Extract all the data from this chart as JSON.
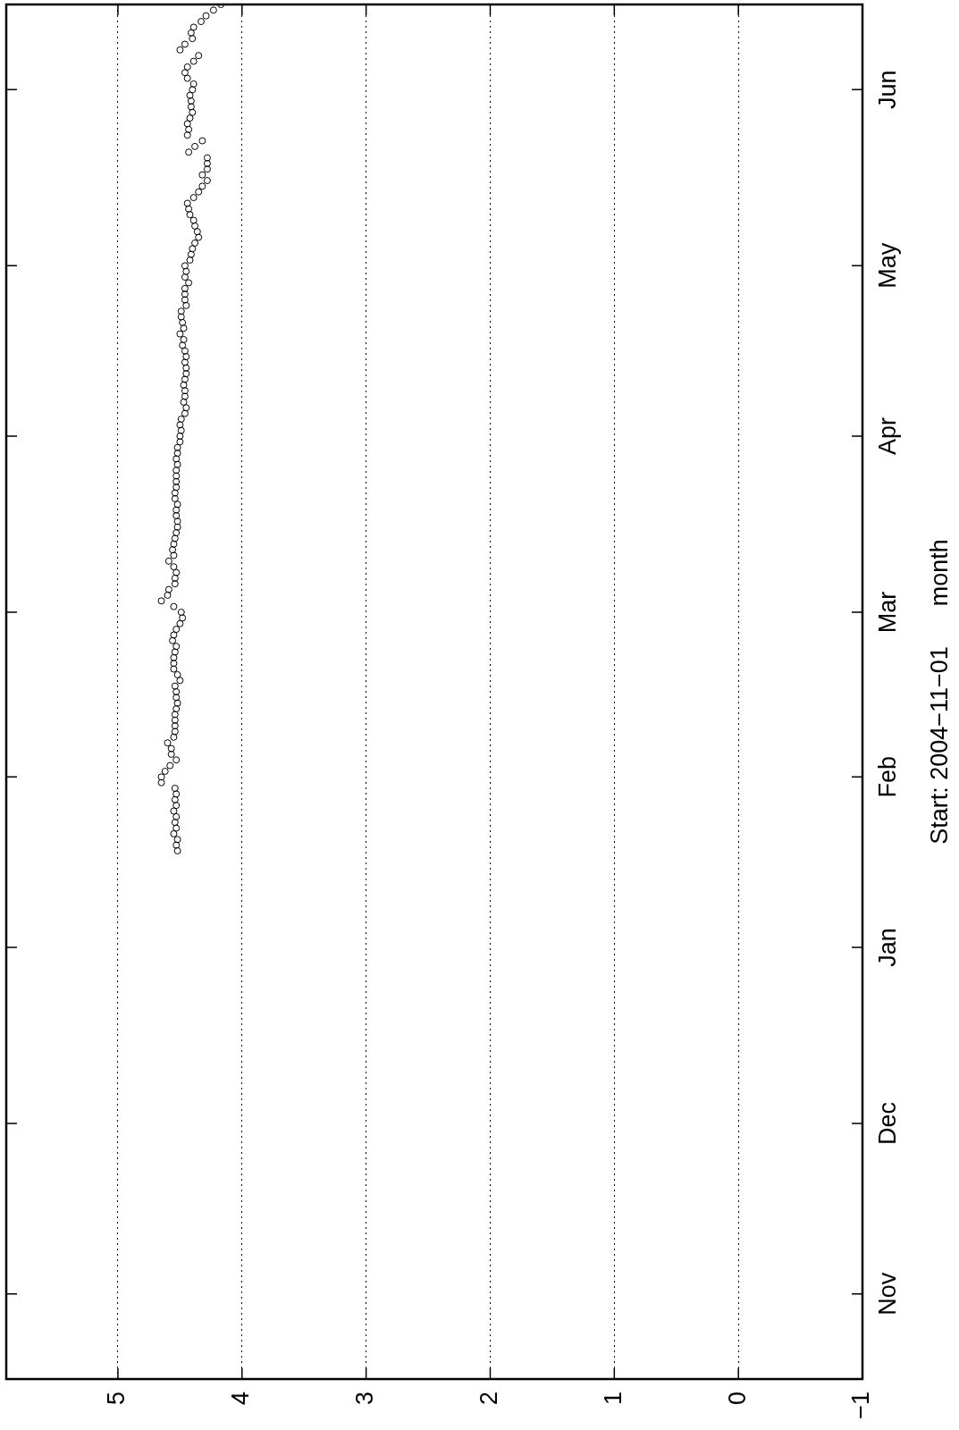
{
  "chart_data": {
    "type": "scatter",
    "orientation": "horizontal",
    "ylabel": "Start: 2004−11−01      month",
    "xlim": [
      5.9,
      -1
    ],
    "xticks": [
      5,
      4,
      3,
      2,
      1,
      0,
      {
        "value": -1,
        "label": "−1"
      }
    ],
    "categories": [
      null,
      null,
      null,
      null,
      null,
      null,
      null,
      null,
      null,
      null,
      null,
      null,
      null,
      null,
      null,
      "Jun",
      null,
      null,
      null,
      null,
      null,
      null,
      null,
      null,
      null,
      null,
      null,
      null,
      null,
      null,
      null,
      null,
      null,
      null,
      null,
      null,
      null,
      null,
      null,
      null,
      null,
      null,
      null,
      null,
      null,
      null,
      "May",
      null,
      null,
      null,
      null,
      null,
      null,
      null,
      null,
      null,
      null,
      null,
      null,
      null,
      null,
      null,
      null,
      null,
      null,
      null,
      null,
      null,
      null,
      null,
      null,
      null,
      null,
      null,
      null,
      null,
      "Apr",
      null,
      null,
      null,
      null,
      null,
      null,
      null,
      null,
      null,
      null,
      null,
      null,
      null,
      null,
      null,
      null,
      null,
      null,
      null,
      null,
      null,
      null,
      null,
      null,
      null,
      null,
      null,
      null,
      null,
      null,
      "Mar",
      null,
      null,
      null,
      null,
      null,
      null,
      null,
      null,
      null,
      null,
      null,
      null,
      null,
      null,
      null,
      null,
      null,
      null,
      null,
      null,
      null,
      null,
      null,
      null,
      null,
      null,
      null,
      null,
      "Feb",
      null,
      null,
      null,
      null,
      null,
      null,
      null,
      null,
      null,
      null,
      null,
      null,
      null,
      null,
      null,
      null,
      null,
      null,
      null,
      null,
      null,
      null,
      null,
      null,
      null,
      null,
      null,
      null,
      null,
      "Jan",
      null,
      null,
      null,
      null,
      null,
      null,
      null,
      null,
      null,
      null,
      null,
      null,
      null,
      null,
      null,
      null,
      null,
      null,
      null,
      null,
      null,
      null,
      null,
      null,
      null,
      null,
      null,
      null,
      null,
      null,
      "Dec",
      null,
      null,
      null,
      null,
      null,
      null,
      null,
      null,
      null,
      null,
      null,
      null,
      null,
      null,
      null,
      null,
      null,
      null,
      null,
      null,
      null,
      null,
      null,
      null,
      null,
      null,
      null,
      null,
      null,
      "Nov",
      null,
      null,
      null,
      null,
      null,
      null,
      null,
      null,
      null,
      null,
      null,
      null,
      null,
      null,
      null
    ],
    "grid": "x",
    "marker": "circle",
    "color": "#000000",
    "values": [
      4.17,
      4.23,
      4.29,
      4.33,
      4.39,
      4.41,
      4.4,
      4.46,
      4.5,
      4.35,
      4.39,
      4.44,
      4.46,
      4.44,
      4.39,
      4.4,
      4.42,
      4.41,
      4.41,
      4.4,
      4.42,
      4.44,
      4.43,
      4.44,
      4.32,
      4.38,
      4.43,
      4.28,
      4.28,
      4.28,
      4.32,
      4.28,
      4.32,
      4.35,
      4.39,
      4.44,
      4.43,
      4.42,
      4.39,
      4.38,
      4.36,
      4.35,
      4.38,
      4.4,
      4.41,
      4.42,
      4.46,
      4.45,
      4.46,
      4.43,
      4.46,
      4.46,
      4.46,
      4.45,
      4.49,
      4.49,
      4.48,
      4.47,
      4.5,
      4.47,
      4.48,
      4.46,
      4.45,
      4.46,
      4.45,
      4.45,
      4.46,
      4.47,
      4.46,
      4.46,
      4.47,
      4.45,
      4.46,
      4.49,
      4.5,
      4.49,
      4.5,
      4.5,
      4.52,
      4.52,
      4.53,
      4.52,
      4.53,
      4.53,
      4.53,
      4.53,
      4.54,
      4.54,
      4.52,
      4.53,
      4.53,
      4.52,
      4.52,
      4.53,
      4.54,
      4.55,
      4.56,
      4.55,
      4.59,
      4.55,
      4.53,
      4.54,
      4.54,
      4.59,
      4.6,
      4.65,
      4.55,
      4.49,
      4.48,
      4.5,
      4.53,
      4.55,
      4.56,
      4.53,
      4.54,
      4.55,
      4.55,
      4.55,
      4.52,
      4.5,
      4.54,
      4.53,
      4.53,
      4.52,
      4.53,
      4.54,
      4.54,
      4.54,
      4.54,
      4.55,
      4.6,
      4.57,
      4.57,
      4.53,
      4.58,
      4.62,
      4.65,
      4.65,
      4.54,
      4.53,
      4.54,
      4.53,
      4.55,
      4.53,
      4.54,
      4.53,
      4.55,
      4.52,
      4.53,
      4.52,
      null,
      null,
      null,
      null,
      null,
      null,
      null,
      null,
      null,
      null,
      null,
      null,
      null,
      null,
      null,
      null,
      null,
      null,
      null,
      null,
      null,
      null,
      null,
      null,
      null,
      null,
      null,
      null,
      null,
      null,
      null,
      null,
      null,
      null,
      null,
      null,
      null,
      null,
      null,
      null,
      null,
      null,
      null,
      null,
      null,
      null,
      null,
      null,
      null,
      null,
      null,
      null,
      null,
      null,
      null,
      null,
      null,
      null,
      null,
      null,
      null,
      null,
      null,
      null,
      null,
      null,
      null,
      null,
      null,
      null,
      null,
      null,
      null,
      null,
      null,
      null,
      null,
      null,
      null,
      null,
      null,
      null,
      null,
      null,
      null,
      null,
      null,
      null,
      null,
      null,
      null,
      null,
      null
    ]
  }
}
